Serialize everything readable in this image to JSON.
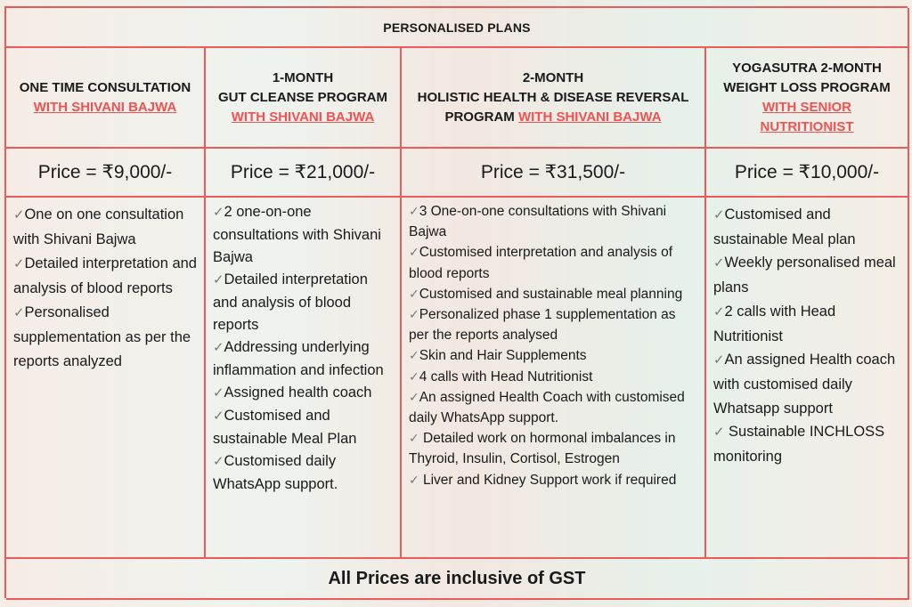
{
  "title": "PERSONALISED PLANS",
  "tick_glyph": "✅",
  "plans": [
    {
      "name_lines": [
        "ONE TIME CONSULTATION"
      ],
      "link": "WITH SHIVANI BAJWA",
      "price": "Price = ₹9,000/-",
      "features": [
        "One on one consultation with Shivani Bajwa",
        "Detailed interpretation and analysis of blood reports",
        "Personalised supplementation as per the reports analyzed"
      ]
    },
    {
      "name_lines": [
        "1-MONTH",
        "GUT CLEANSE PROGRAM"
      ],
      "link": "WITH SHIVANI BAJWA",
      "price": "Price = ₹21,000/-",
      "features": [
        "2 one-on-one consultations with Shivani Bajwa",
        "Detailed interpretation and analysis of blood reports",
        "Addressing underlying inflammation and infection",
        "Assigned health coach",
        "Customised and sustainable Meal Plan",
        "Customised daily WhatsApp support."
      ]
    },
    {
      "name_lines": [
        "2-MONTH",
        "HOLISTIC HEALTH & DISEASE REVERSAL",
        "PROGRAM"
      ],
      "link": "WITH SHIVANI BAJWA",
      "price": "Price = ₹31,500/-",
      "features": [
        "3 One-on-one consultations with Shivani Bajwa",
        "Customised interpretation and analysis of blood reports",
        "Customised and sustainable meal planning",
        "Personalized phase 1 supplementation as per the reports analysed",
        "Skin and Hair Supplements",
        "4 calls with Head Nutritionist",
        "An assigned Health Coach with customised daily WhatsApp support.",
        " Detailed work on hormonal imbalances in Thyroid, Insulin, Cortisol, Estrogen",
        " Liver and Kidney Support work if required"
      ]
    },
    {
      "name_lines": [
        "YOGASUTRA 2-MONTH",
        "WEIGHT LOSS PROGRAM"
      ],
      "link": "WITH SENIOR NUTRITIONIST",
      "price": "Price = ₹10,000/-",
      "features": [
        "Customised and sustainable Meal plan",
        "Weekly personalised meal plans",
        "2 calls with Head Nutritionist",
        "An assigned Health coach with customised daily Whatsapp support",
        " Sustainable INCHLOSS monitoring"
      ]
    }
  ],
  "footer": "All Prices are inclusive of GST"
}
